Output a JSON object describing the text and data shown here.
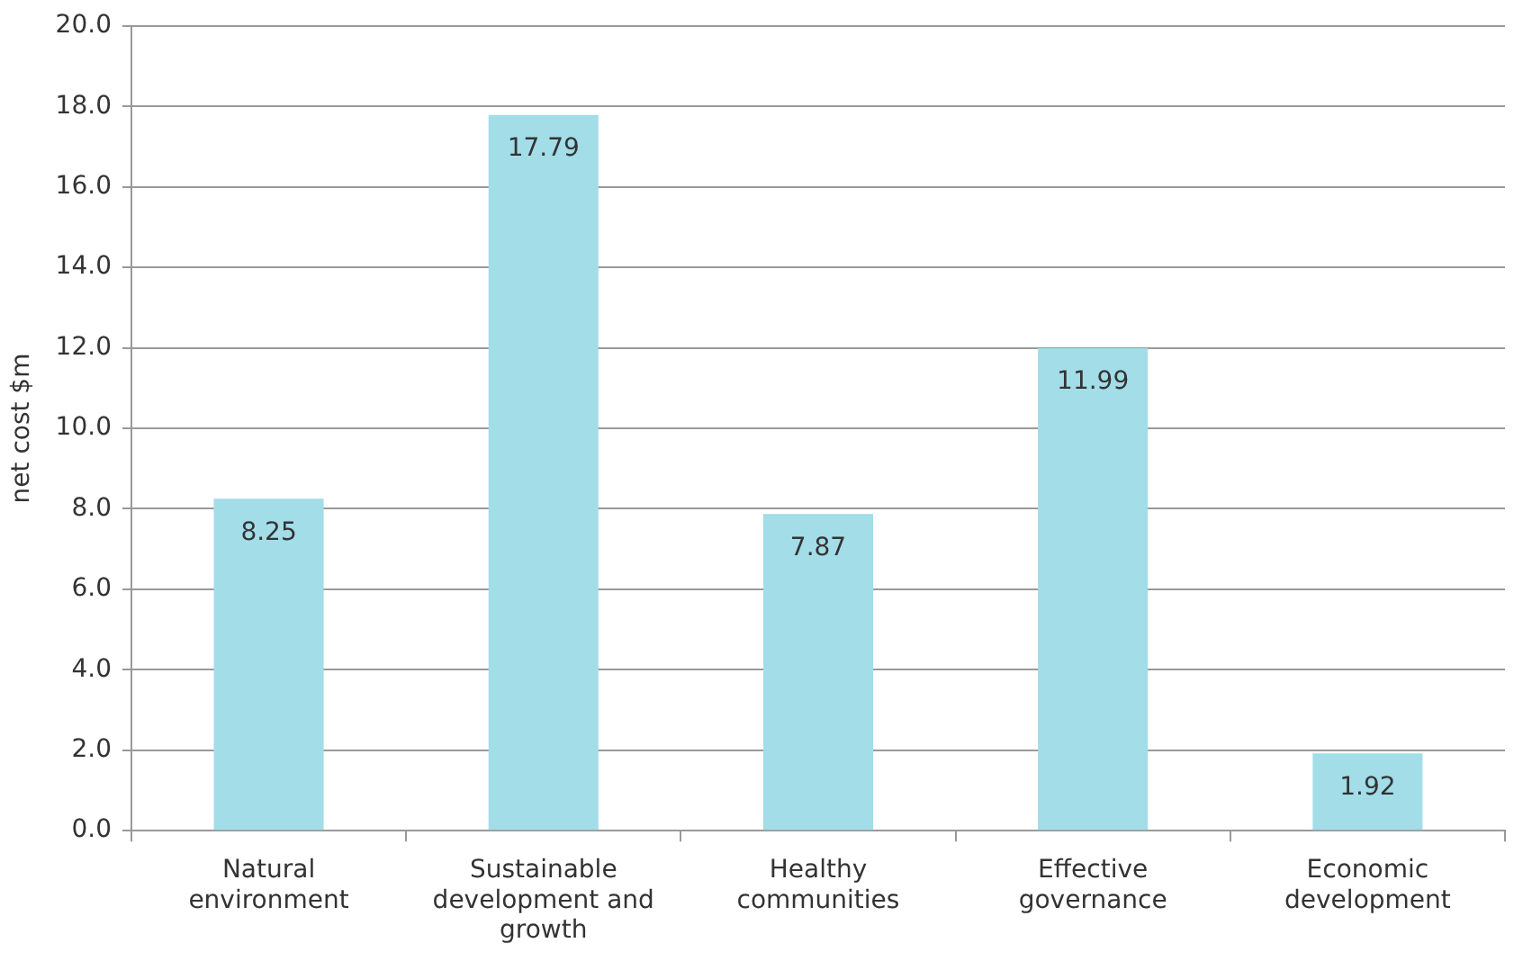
{
  "chart_data": {
    "type": "bar",
    "ylabel": "net cost $m",
    "categories": [
      "Natural environment",
      "Sustainable development and growth",
      "Healthy communities",
      "Effective governance",
      "Economic development"
    ],
    "values": [
      8.25,
      17.79,
      7.87,
      11.99,
      1.92
    ],
    "color": "#a2dde8",
    "data_labels": true,
    "ylim": [
      0,
      20
    ],
    "yticks": [
      {
        "value": 0,
        "label": "0.0"
      },
      {
        "value": 2,
        "label": "2.0"
      },
      {
        "value": 4,
        "label": "4.0"
      },
      {
        "value": 6,
        "label": "6.0"
      },
      {
        "value": 8,
        "label": "8.0"
      },
      {
        "value": 10,
        "label": "10.0"
      },
      {
        "value": 12,
        "label": "12.0"
      },
      {
        "value": 14,
        "label": "14.0"
      },
      {
        "value": 16,
        "label": "16.0"
      },
      {
        "value": 18,
        "label": "18.0"
      },
      {
        "value": 20,
        "label": "20.0"
      }
    ],
    "grid": "y",
    "legend": false
  }
}
